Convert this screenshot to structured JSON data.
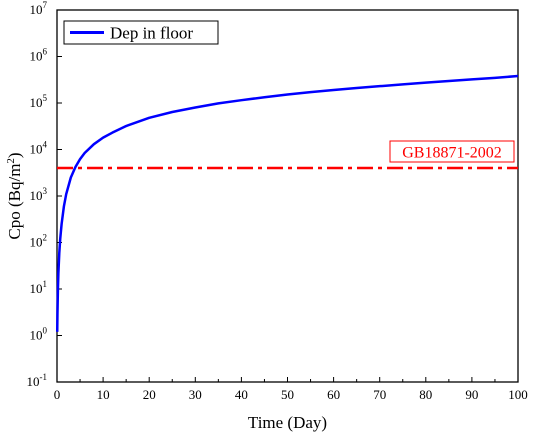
{
  "chart_data": {
    "type": "line",
    "title": "",
    "xlabel": "Time (Day)",
    "ylabel": {
      "main": "Cpo (Bq/m",
      "sup": "2",
      "end": ")"
    },
    "x_ticks": [
      0,
      10,
      20,
      30,
      40,
      50,
      60,
      70,
      80,
      90,
      100
    ],
    "xlim": [
      0,
      100
    ],
    "y_scale": "log",
    "ylim": [
      0.1,
      10000000
    ],
    "y_ticks": [
      {
        "base": "10",
        "exp": "-1",
        "value": 0.1
      },
      {
        "base": "10",
        "exp": "0",
        "value": 1
      },
      {
        "base": "10",
        "exp": "1",
        "value": 10
      },
      {
        "base": "10",
        "exp": "2",
        "value": 100
      },
      {
        "base": "10",
        "exp": "3",
        "value": 1000
      },
      {
        "base": "10",
        "exp": "4",
        "value": 10000
      },
      {
        "base": "10",
        "exp": "5",
        "value": 100000
      },
      {
        "base": "10",
        "exp": "6",
        "value": 1000000
      },
      {
        "base": "10",
        "exp": "7",
        "value": 10000000
      }
    ],
    "grid": false,
    "legend": {
      "position": "top-left"
    },
    "series": [
      {
        "name": "Dep in floor",
        "color": "#0000ff",
        "points": [
          [
            0.05,
            1.2
          ],
          [
            0.1,
            3
          ],
          [
            0.2,
            10
          ],
          [
            0.3,
            22
          ],
          [
            0.5,
            60
          ],
          [
            0.7,
            120
          ],
          [
            1,
            250
          ],
          [
            1.5,
            600
          ],
          [
            2,
            1100
          ],
          [
            3,
            2500
          ],
          [
            4,
            4200
          ],
          [
            5,
            6200
          ],
          [
            6,
            8400
          ],
          [
            8,
            13000
          ],
          [
            10,
            18000
          ],
          [
            12,
            23000
          ],
          [
            15,
            32000
          ],
          [
            20,
            48000
          ],
          [
            25,
            64000
          ],
          [
            30,
            80000
          ],
          [
            35,
            98000
          ],
          [
            40,
            115000
          ],
          [
            45,
            133000
          ],
          [
            50,
            152000
          ],
          [
            55,
            171000
          ],
          [
            60,
            190000
          ],
          [
            65,
            210000
          ],
          [
            70,
            230000
          ],
          [
            75,
            252000
          ],
          [
            80,
            275000
          ],
          [
            85,
            298000
          ],
          [
            90,
            322000
          ],
          [
            95,
            348000
          ],
          [
            100,
            380000
          ]
        ]
      }
    ],
    "reference_lines": [
      {
        "label": "GB18871-2002",
        "y": 4000,
        "color": "#ff0000",
        "style": "dash-dot"
      }
    ]
  }
}
